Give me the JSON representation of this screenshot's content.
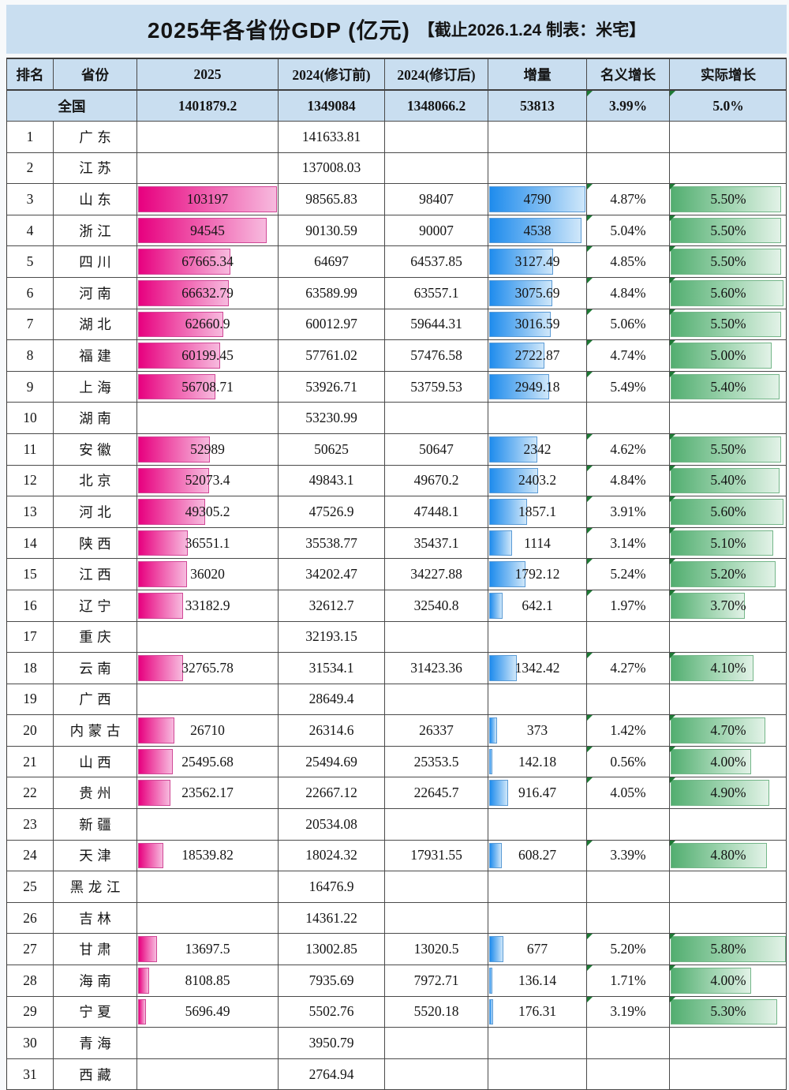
{
  "title": {
    "main": "2025年各省份GDP (亿元)",
    "suffix": "【截止2026.1.24 制表：米宅】"
  },
  "colors": {
    "panel_background": "#c9def0",
    "row_background": "#ffffff",
    "grid_line": "#4a4a4a",
    "pink_bar_start": "#e7007f",
    "pink_bar_end": "#f7bade",
    "blue_bar_start": "#1f8ced",
    "blue_bar_end": "#cfe7fa",
    "green_bar_start": "#52ae70",
    "green_bar_end": "#e2f2e7",
    "comment_marker": "#1e7a35",
    "text": "#141414"
  },
  "chart_data": {
    "type": "table",
    "title": "2025年各省份GDP (亿元) 【截止2026.1.24 制表：米宅】",
    "columns": [
      "排名",
      "省份",
      "2025",
      "2024(修订前)",
      "2024(修订后)",
      "增量",
      "名义增长",
      "实际增长"
    ],
    "bar_scales": {
      "gdp_2025_max": 103197,
      "delta_max": 4790,
      "real_growth_max": 5.8
    },
    "national": {
      "rank": "",
      "name": "全国",
      "gdp_2025": "1401879.2",
      "gdp_2024_pre": "1349084",
      "gdp_2024_post": "1348066.2",
      "delta": "53813",
      "nominal": "3.99%",
      "real": "5.0%"
    },
    "rows": [
      {
        "rank": "1",
        "name": "广东",
        "gdp_2025": "",
        "gdp_2024_pre": "141633.81",
        "gdp_2024_post": "",
        "delta": "",
        "nominal": "",
        "real": ""
      },
      {
        "rank": "2",
        "name": "江苏",
        "gdp_2025": "",
        "gdp_2024_pre": "137008.03",
        "gdp_2024_post": "",
        "delta": "",
        "nominal": "",
        "real": ""
      },
      {
        "rank": "3",
        "name": "山东",
        "gdp_2025": "103197",
        "gdp_2024_pre": "98565.83",
        "gdp_2024_post": "98407",
        "delta": "4790",
        "nominal": "4.87%",
        "real": "5.50%"
      },
      {
        "rank": "4",
        "name": "浙江",
        "gdp_2025": "94545",
        "gdp_2024_pre": "90130.59",
        "gdp_2024_post": "90007",
        "delta": "4538",
        "nominal": "5.04%",
        "real": "5.50%"
      },
      {
        "rank": "5",
        "name": "四川",
        "gdp_2025": "67665.34",
        "gdp_2024_pre": "64697",
        "gdp_2024_post": "64537.85",
        "delta": "3127.49",
        "nominal": "4.85%",
        "real": "5.50%"
      },
      {
        "rank": "6",
        "name": "河南",
        "gdp_2025": "66632.79",
        "gdp_2024_pre": "63589.99",
        "gdp_2024_post": "63557.1",
        "delta": "3075.69",
        "nominal": "4.84%",
        "real": "5.60%"
      },
      {
        "rank": "7",
        "name": "湖北",
        "gdp_2025": "62660.9",
        "gdp_2024_pre": "60012.97",
        "gdp_2024_post": "59644.31",
        "delta": "3016.59",
        "nominal": "5.06%",
        "real": "5.50%"
      },
      {
        "rank": "8",
        "name": "福建",
        "gdp_2025": "60199.45",
        "gdp_2024_pre": "57761.02",
        "gdp_2024_post": "57476.58",
        "delta": "2722.87",
        "nominal": "4.74%",
        "real": "5.00%"
      },
      {
        "rank": "9",
        "name": "上海",
        "gdp_2025": "56708.71",
        "gdp_2024_pre": "53926.71",
        "gdp_2024_post": "53759.53",
        "delta": "2949.18",
        "nominal": "5.49%",
        "real": "5.40%"
      },
      {
        "rank": "10",
        "name": "湖南",
        "gdp_2025": "",
        "gdp_2024_pre": "53230.99",
        "gdp_2024_post": "",
        "delta": "",
        "nominal": "",
        "real": ""
      },
      {
        "rank": "11",
        "name": "安徽",
        "gdp_2025": "52989",
        "gdp_2024_pre": "50625",
        "gdp_2024_post": "50647",
        "delta": "2342",
        "nominal": "4.62%",
        "real": "5.50%"
      },
      {
        "rank": "12",
        "name": "北京",
        "gdp_2025": "52073.4",
        "gdp_2024_pre": "49843.1",
        "gdp_2024_post": "49670.2",
        "delta": "2403.2",
        "nominal": "4.84%",
        "real": "5.40%"
      },
      {
        "rank": "13",
        "name": "河北",
        "gdp_2025": "49305.2",
        "gdp_2024_pre": "47526.9",
        "gdp_2024_post": "47448.1",
        "delta": "1857.1",
        "nominal": "3.91%",
        "real": "5.60%"
      },
      {
        "rank": "14",
        "name": "陕西",
        "gdp_2025": "36551.1",
        "gdp_2024_pre": "35538.77",
        "gdp_2024_post": "35437.1",
        "delta": "1114",
        "nominal": "3.14%",
        "real": "5.10%"
      },
      {
        "rank": "15",
        "name": "江西",
        "gdp_2025": "36020",
        "gdp_2024_pre": "34202.47",
        "gdp_2024_post": "34227.88",
        "delta": "1792.12",
        "nominal": "5.24%",
        "real": "5.20%"
      },
      {
        "rank": "16",
        "name": "辽宁",
        "gdp_2025": "33182.9",
        "gdp_2024_pre": "32612.7",
        "gdp_2024_post": "32540.8",
        "delta": "642.1",
        "nominal": "1.97%",
        "real": "3.70%"
      },
      {
        "rank": "17",
        "name": "重庆",
        "gdp_2025": "",
        "gdp_2024_pre": "32193.15",
        "gdp_2024_post": "",
        "delta": "",
        "nominal": "",
        "real": ""
      },
      {
        "rank": "18",
        "name": "云南",
        "gdp_2025": "32765.78",
        "gdp_2024_pre": "31534.1",
        "gdp_2024_post": "31423.36",
        "delta": "1342.42",
        "nominal": "4.27%",
        "real": "4.10%"
      },
      {
        "rank": "19",
        "name": "广西",
        "gdp_2025": "",
        "gdp_2024_pre": "28649.4",
        "gdp_2024_post": "",
        "delta": "",
        "nominal": "",
        "real": ""
      },
      {
        "rank": "20",
        "name": "内蒙古",
        "gdp_2025": "26710",
        "gdp_2024_pre": "26314.6",
        "gdp_2024_post": "26337",
        "delta": "373",
        "nominal": "1.42%",
        "real": "4.70%"
      },
      {
        "rank": "21",
        "name": "山西",
        "gdp_2025": "25495.68",
        "gdp_2024_pre": "25494.69",
        "gdp_2024_post": "25353.5",
        "delta": "142.18",
        "nominal": "0.56%",
        "real": "4.00%"
      },
      {
        "rank": "22",
        "name": "贵州",
        "gdp_2025": "23562.17",
        "gdp_2024_pre": "22667.12",
        "gdp_2024_post": "22645.7",
        "delta": "916.47",
        "nominal": "4.05%",
        "real": "4.90%"
      },
      {
        "rank": "23",
        "name": "新疆",
        "gdp_2025": "",
        "gdp_2024_pre": "20534.08",
        "gdp_2024_post": "",
        "delta": "",
        "nominal": "",
        "real": ""
      },
      {
        "rank": "24",
        "name": "天津",
        "gdp_2025": "18539.82",
        "gdp_2024_pre": "18024.32",
        "gdp_2024_post": "17931.55",
        "delta": "608.27",
        "nominal": "3.39%",
        "real": "4.80%"
      },
      {
        "rank": "25",
        "name": "黑龙江",
        "gdp_2025": "",
        "gdp_2024_pre": "16476.9",
        "gdp_2024_post": "",
        "delta": "",
        "nominal": "",
        "real": ""
      },
      {
        "rank": "26",
        "name": "吉林",
        "gdp_2025": "",
        "gdp_2024_pre": "14361.22",
        "gdp_2024_post": "",
        "delta": "",
        "nominal": "",
        "real": ""
      },
      {
        "rank": "27",
        "name": "甘肃",
        "gdp_2025": "13697.5",
        "gdp_2024_pre": "13002.85",
        "gdp_2024_post": "13020.5",
        "delta": "677",
        "nominal": "5.20%",
        "real": "5.80%"
      },
      {
        "rank": "28",
        "name": "海南",
        "gdp_2025": "8108.85",
        "gdp_2024_pre": "7935.69",
        "gdp_2024_post": "7972.71",
        "delta": "136.14",
        "nominal": "1.71%",
        "real": "4.00%"
      },
      {
        "rank": "29",
        "name": "宁夏",
        "gdp_2025": "5696.49",
        "gdp_2024_pre": "5502.76",
        "gdp_2024_post": "5520.18",
        "delta": "176.31",
        "nominal": "3.19%",
        "real": "5.30%"
      },
      {
        "rank": "30",
        "name": "青海",
        "gdp_2025": "",
        "gdp_2024_pre": "3950.79",
        "gdp_2024_post": "",
        "delta": "",
        "nominal": "",
        "real": ""
      },
      {
        "rank": "31",
        "name": "西藏",
        "gdp_2025": "",
        "gdp_2024_pre": "2764.94",
        "gdp_2024_post": "",
        "delta": "",
        "nominal": "",
        "real": ""
      }
    ]
  }
}
